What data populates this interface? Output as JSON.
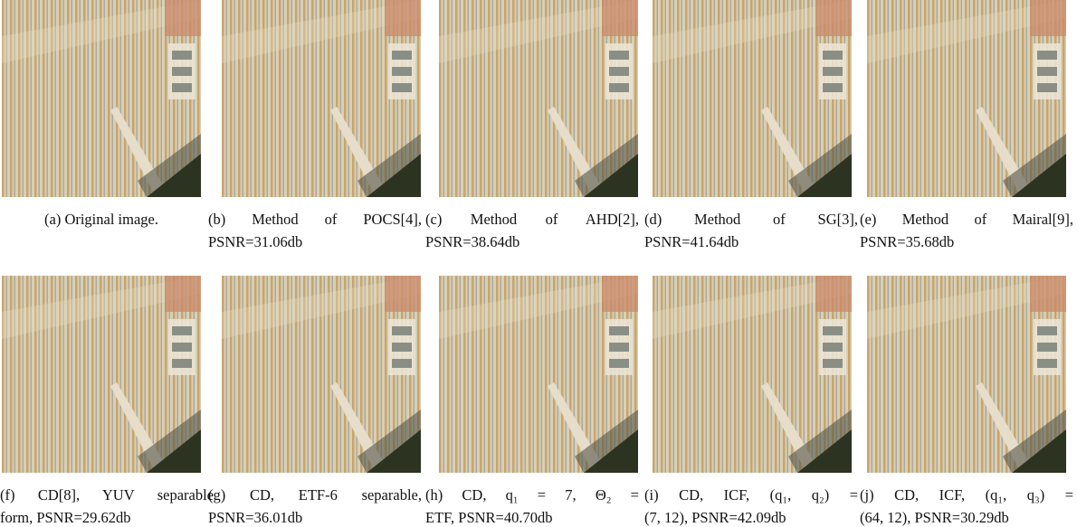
{
  "figures": [
    {
      "caption": [
        "(a) Original image."
      ]
    },
    {
      "caption": [
        "(b) Method of POCS[4],",
        "PSNR=31.06db"
      ]
    },
    {
      "caption": [
        "(c) Method of AHD[2],",
        "PSNR=38.64db"
      ]
    },
    {
      "caption": [
        "(d) Method of SG[3],",
        "PSNR=41.64db"
      ]
    },
    {
      "caption": [
        "(e) Method of Mairal[9],",
        "PSNR=35.68db"
      ]
    },
    {
      "caption": [
        "(f) CD[8], YUV separable",
        "form, PSNR=29.62db"
      ]
    },
    {
      "caption": [
        "(g) CD, ETF-6 separable,",
        "PSNR=36.01db"
      ]
    },
    {
      "caption": [
        "(h) CD, q₁ = 7, Θ₂ =",
        "ETF, PSNR=40.70db"
      ]
    },
    {
      "caption": [
        "(i) CD, ICF, (q₁, q₂) =",
        "(7, 12), PSNR=42.09db"
      ]
    },
    {
      "caption": [
        "(j) CD, ICF, (q₁, q₃) =",
        "(64, 12), PSNR=30.29db"
      ]
    }
  ]
}
